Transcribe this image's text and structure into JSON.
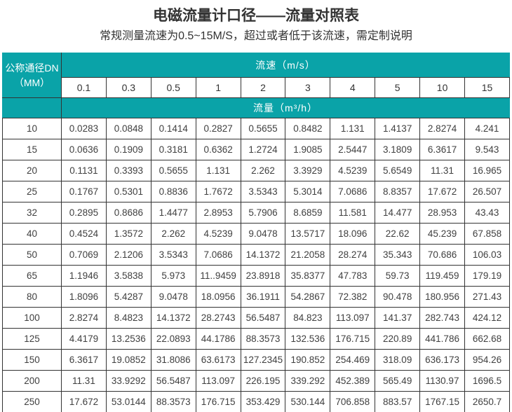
{
  "page": {
    "title": "电磁流量计口径——流量对照表",
    "subtitle": "常规测量流速为0.5~15M/S，超过或者低于该流速，需定制说明"
  },
  "table_headers": {
    "corner_line1": "公称通径DN",
    "corner_line2": "（MM）",
    "velocity_group": "流速（m/s）",
    "flow_group": "流量（m³/h）"
  },
  "chart_data": {
    "type": "table",
    "title": "电磁流量计口径——流量对照表",
    "subtitle": "常规测量流速为0.5~15M/S，超过或者低于该流速，需定制说明",
    "corner_header": "公称通径DN（MM）",
    "column_group_label": "流速（m/s）",
    "value_group_label": "流量（m³/h）",
    "velocity_columns_m_per_s": [
      0.1,
      0.3,
      0.5,
      1,
      2,
      3,
      4,
      5,
      10,
      15
    ],
    "rows": [
      {
        "dn_mm": "10",
        "flows_m3_per_h": [
          "0.0283",
          "0.0848",
          "0.1414",
          "0.2827",
          "0.5655",
          "0.8482",
          "1.131",
          "1.4137",
          "2.8274",
          "4.241"
        ]
      },
      {
        "dn_mm": "15",
        "flows_m3_per_h": [
          "0.0636",
          "0.1909",
          "0.3181",
          "0.6362",
          "1.2724",
          "1.9085",
          "2.5447",
          "3.1809",
          "6.3617",
          "9.543"
        ]
      },
      {
        "dn_mm": "20",
        "flows_m3_per_h": [
          "0.1131",
          "0.3393",
          "0.5655",
          "1.131",
          "2.262",
          "3.3929",
          "4.5239",
          "5.6549",
          "11.31",
          "16.965"
        ]
      },
      {
        "dn_mm": "25",
        "flows_m3_per_h": [
          "0.1767",
          "0.5301",
          "0.8836",
          "1.7672",
          "3.5343",
          "5.3014",
          "7.0686",
          "8.8357",
          "17.672",
          "26.507"
        ]
      },
      {
        "dn_mm": "32",
        "flows_m3_per_h": [
          "0.2895",
          "0.8686",
          "1.4477",
          "2.8953",
          "5.7906",
          "8.6859",
          "11.581",
          "14.477",
          "28.953",
          "43.43"
        ]
      },
      {
        "dn_mm": "40",
        "flows_m3_per_h": [
          "0.4524",
          "1.3572",
          "2.262",
          "4.5239",
          "9.0478",
          "13.5717",
          "18.096",
          "22.62",
          "45.239",
          "67.858"
        ]
      },
      {
        "dn_mm": "50",
        "flows_m3_per_h": [
          "0.7069",
          "2.1206",
          "3.5343",
          "7.0686",
          "14.1372",
          "21.2058",
          "28.274",
          "35.343",
          "70.686",
          "106.03"
        ]
      },
      {
        "dn_mm": "65",
        "flows_m3_per_h": [
          "1.1946",
          "3.5838",
          "5.973",
          "11..9459",
          "23.8918",
          "35.8377",
          "47.783",
          "59.73",
          "119.459",
          "179.19"
        ]
      },
      {
        "dn_mm": "80",
        "flows_m3_per_h": [
          "1.8096",
          "5.4287",
          "9.0478",
          "18.0956",
          "36.1911",
          "54.2867",
          "72.382",
          "90.478",
          "180.956",
          "271.43"
        ]
      },
      {
        "dn_mm": "100",
        "flows_m3_per_h": [
          "2.8274",
          "8.4823",
          "14.1372",
          "28.2743",
          "56.5487",
          "84.823",
          "113.097",
          "141.37",
          "282.743",
          "424.12"
        ]
      },
      {
        "dn_mm": "125",
        "flows_m3_per_h": [
          "4.4179",
          "13.2536",
          "22.0893",
          "44.1786",
          "88.3573",
          "132.536",
          "176.715",
          "220.89",
          "441.786",
          "662.68"
        ]
      },
      {
        "dn_mm": "150",
        "flows_m3_per_h": [
          "6.3617",
          "19.0852",
          "31.8086",
          "63.6173",
          "127.2345",
          "190.852",
          "254.469",
          "318.09",
          "636.173",
          "954.26"
        ]
      },
      {
        "dn_mm": "200",
        "flows_m3_per_h": [
          "11.31",
          "33.9292",
          "56.5487",
          "113.097",
          "226.195",
          "339.292",
          "452.389",
          "565.49",
          "1130.97",
          "1696.5"
        ]
      },
      {
        "dn_mm": "250",
        "flows_m3_per_h": [
          "17.672",
          "53.0144",
          "88.3573",
          "176.715",
          "353.429",
          "530.144",
          "706.858",
          "883.57",
          "1767.15",
          "2650.7"
        ]
      }
    ]
  },
  "colors": {
    "teal": "#0aa3a8",
    "border": "#333333",
    "title_text": "#333333",
    "data_text": "#404040",
    "header_text": "#ffffff"
  }
}
